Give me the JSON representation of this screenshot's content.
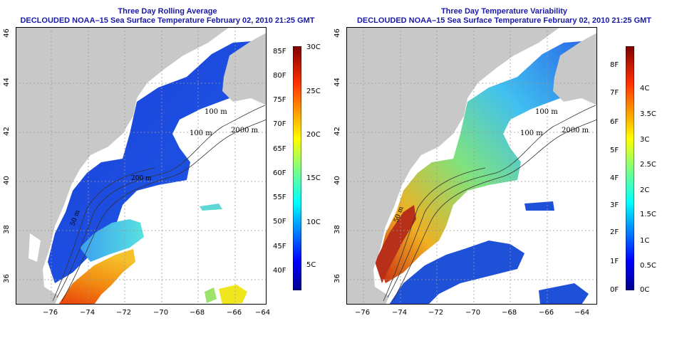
{
  "left_panel": {
    "title": "Three Day Rolling Average",
    "subtitle": "DECLOUDED NOAA–15 Sea Surface Temperature February 02, 2010 21:25 GMT",
    "lat_ticks": [
      "36",
      "38",
      "40",
      "42",
      "44",
      "46"
    ],
    "lon_ticks": [
      "−76",
      "−74",
      "−72",
      "−70",
      "−68",
      "−66",
      "−64"
    ],
    "contour_labels": [
      "100 m",
      "2000 m",
      "100 m",
      "200 m",
      "50 m"
    ],
    "colorbar_f": [
      "40F",
      "45F",
      "50F",
      "55F",
      "60F",
      "65F",
      "70F",
      "75F",
      "80F",
      "85F"
    ],
    "colorbar_c": [
      "5C",
      "10C",
      "15C",
      "20C",
      "25C",
      "30C"
    ]
  },
  "right_panel": {
    "title": "Three Day Temperature Variability",
    "subtitle": "DECLOUDED NOAA–15 Sea Surface Temperature February 02, 2010 21:25 GMT",
    "lat_ticks": [
      "36",
      "38",
      "40",
      "42",
      "44",
      "46"
    ],
    "lon_ticks": [
      "−76",
      "−74",
      "−72",
      "−70",
      "−68",
      "−66",
      "−64"
    ],
    "contour_labels": [
      "100 m",
      "2000 m",
      "100 m",
      "50 m"
    ],
    "colorbar_f": [
      "0F",
      "1F",
      "2F",
      "3F",
      "4F",
      "5F",
      "6F",
      "7F",
      "8F"
    ],
    "colorbar_c": [
      "0C",
      "0.5C",
      "1C",
      "1.5C",
      "2C",
      "2.5C",
      "3C",
      "3.5C",
      "4C"
    ]
  },
  "colors": {
    "land": "#c8c8c8",
    "title": "#1a1aa6"
  }
}
